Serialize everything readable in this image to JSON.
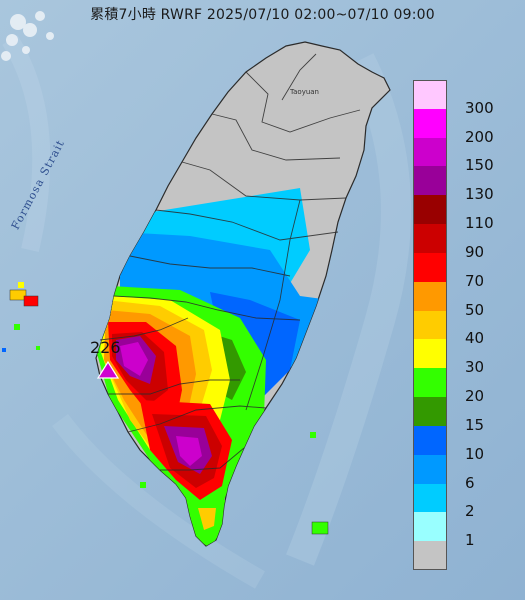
{
  "title": "累積7小時 RWRF 2025/07/10 02:00~07/10 09:00",
  "strait_label": "Formosa Strait",
  "city_label": "Taoyuan",
  "max_marker": {
    "value": "226"
  },
  "legend": {
    "levels": [
      {
        "label": "300",
        "color": "#ffc8ff"
      },
      {
        "label": "200",
        "color": "#ff00ff"
      },
      {
        "label": "150",
        "color": "#cc00cc"
      },
      {
        "label": "130",
        "color": "#990099"
      },
      {
        "label": "110",
        "color": "#990000"
      },
      {
        "label": "90",
        "color": "#cc0000"
      },
      {
        "label": "70",
        "color": "#ff0000"
      },
      {
        "label": "50",
        "color": "#ff9900"
      },
      {
        "label": "40",
        "color": "#ffcc00"
      },
      {
        "label": "30",
        "color": "#ffff00"
      },
      {
        "label": "20",
        "color": "#33ff00"
      },
      {
        "label": "15",
        "color": "#339900"
      },
      {
        "label": "10",
        "color": "#0066ff"
      },
      {
        "label": "6",
        "color": "#0099ff"
      },
      {
        "label": "2",
        "color": "#00ccff"
      },
      {
        "label": "1",
        "color": "#99ffff"
      },
      {
        "label": "",
        "color": "#c4c4c4"
      }
    ]
  },
  "colors": {
    "sea": "#9dbdd8",
    "land_base": "#c4c4c4",
    "border": "#333333"
  }
}
